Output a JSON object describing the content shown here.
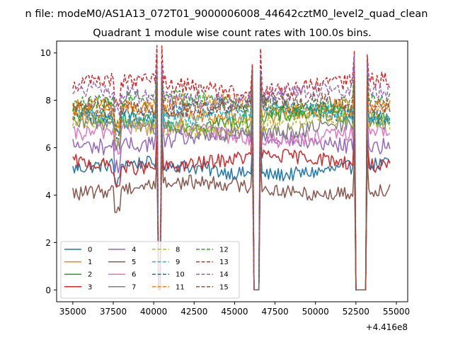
{
  "chart_data": {
    "type": "line",
    "suptitle": "n file: modeM0/AS1A13_072T01_9000006008_44642cztM0_level2_quad_clean",
    "title": "Quadrant 1 module wise count rates with 100.0s bins.",
    "xlabel": "",
    "ylabel": "",
    "offset_text": "+4.416e8",
    "xlim": [
      34000,
      55700
    ],
    "ylim": [
      -0.5,
      10.5
    ],
    "x_ticks": [
      35000,
      37500,
      40000,
      42500,
      45000,
      47500,
      50000,
      52500,
      55000
    ],
    "x_tick_labels": [
      "35000",
      "37500",
      "40000",
      "42500",
      "45000",
      "47500",
      "50000",
      "52500",
      "55000"
    ],
    "y_ticks": [
      0,
      2,
      4,
      6,
      8,
      10
    ],
    "y_tick_labels": [
      "0",
      "2",
      "4",
      "6",
      "8",
      "10"
    ],
    "x_start": 35000,
    "x_end": 54600,
    "x_step": 100,
    "legend_location": "lower-left",
    "legend_columns": 4,
    "series": [
      {
        "name": "0",
        "color": "#1f77b4",
        "dash": "solid",
        "level": 5.1,
        "amp": 0.3
      },
      {
        "name": "1",
        "color": "#ff7f0e",
        "dash": "solid",
        "level": 7.5,
        "amp": 0.35
      },
      {
        "name": "2",
        "color": "#2ca02c",
        "dash": "solid",
        "level": 7.2,
        "amp": 0.35
      },
      {
        "name": "3",
        "color": "#d62728",
        "dash": "solid",
        "level": 5.4,
        "amp": 0.3
      },
      {
        "name": "4",
        "color": "#9467bd",
        "dash": "solid",
        "level": 6.3,
        "amp": 0.35
      },
      {
        "name": "5",
        "color": "#8c564b",
        "dash": "solid",
        "level": 4.3,
        "amp": 0.3
      },
      {
        "name": "6",
        "color": "#e377c2",
        "dash": "solid",
        "level": 6.6,
        "amp": 0.35
      },
      {
        "name": "7",
        "color": "#7f7f7f",
        "dash": "solid",
        "level": 6.8,
        "amp": 0.35
      },
      {
        "name": "8",
        "color": "#bcbd22",
        "dash": "dashed",
        "level": 7.0,
        "amp": 0.35
      },
      {
        "name": "9",
        "color": "#17becf",
        "dash": "dashed",
        "level": 7.4,
        "amp": 0.35
      },
      {
        "name": "10",
        "color": "#1f77b4",
        "dash": "dashed",
        "level": 7.6,
        "amp": 0.35
      },
      {
        "name": "11",
        "color": "#ff7f0e",
        "dash": "dashed",
        "level": 7.7,
        "amp": 0.35
      },
      {
        "name": "12",
        "color": "#2ca02c",
        "dash": "dashed",
        "level": 7.9,
        "amp": 0.35
      },
      {
        "name": "13",
        "color": "#d62728",
        "dash": "dashed",
        "level": 8.6,
        "amp": 0.35
      },
      {
        "name": "14",
        "color": "#9467bd",
        "dash": "dashed",
        "level": 8.2,
        "amp": 0.35
      },
      {
        "name": "15",
        "color": "#8c564b",
        "dash": "dashed",
        "level": 7.8,
        "amp": 0.35
      }
    ],
    "gaps": [
      {
        "x_start": 40300,
        "x_end": 40400,
        "value": 0.0
      },
      {
        "x_start": 46200,
        "x_end": 46500,
        "value": 0.0
      },
      {
        "x_start": 52500,
        "x_end": 53100,
        "value": 0.0
      }
    ]
  }
}
